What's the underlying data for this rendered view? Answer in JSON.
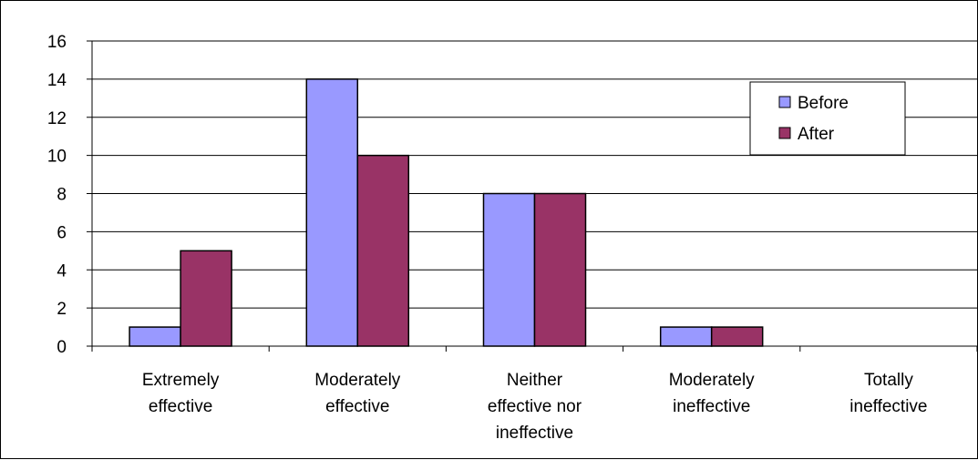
{
  "chart_data": {
    "type": "bar",
    "title": "",
    "xlabel": "",
    "ylabel": "",
    "categories": [
      [
        "Extremely",
        "effective"
      ],
      [
        "Moderately",
        "effective"
      ],
      [
        "Neither",
        "effective nor",
        "ineffective"
      ],
      [
        "Moderately",
        "ineffective"
      ],
      [
        "Totally",
        "ineffective"
      ]
    ],
    "series": [
      {
        "name": "Before",
        "values": [
          1,
          14,
          8,
          1,
          0
        ],
        "color": "#9999ff"
      },
      {
        "name": "After",
        "values": [
          5,
          10,
          8,
          1,
          0
        ],
        "color": "#993366"
      }
    ],
    "ylim": [
      0,
      16
    ],
    "yticks": [
      0,
      2,
      4,
      6,
      8,
      10,
      12,
      14,
      16
    ],
    "grid": true,
    "legend_position": "top-right"
  }
}
